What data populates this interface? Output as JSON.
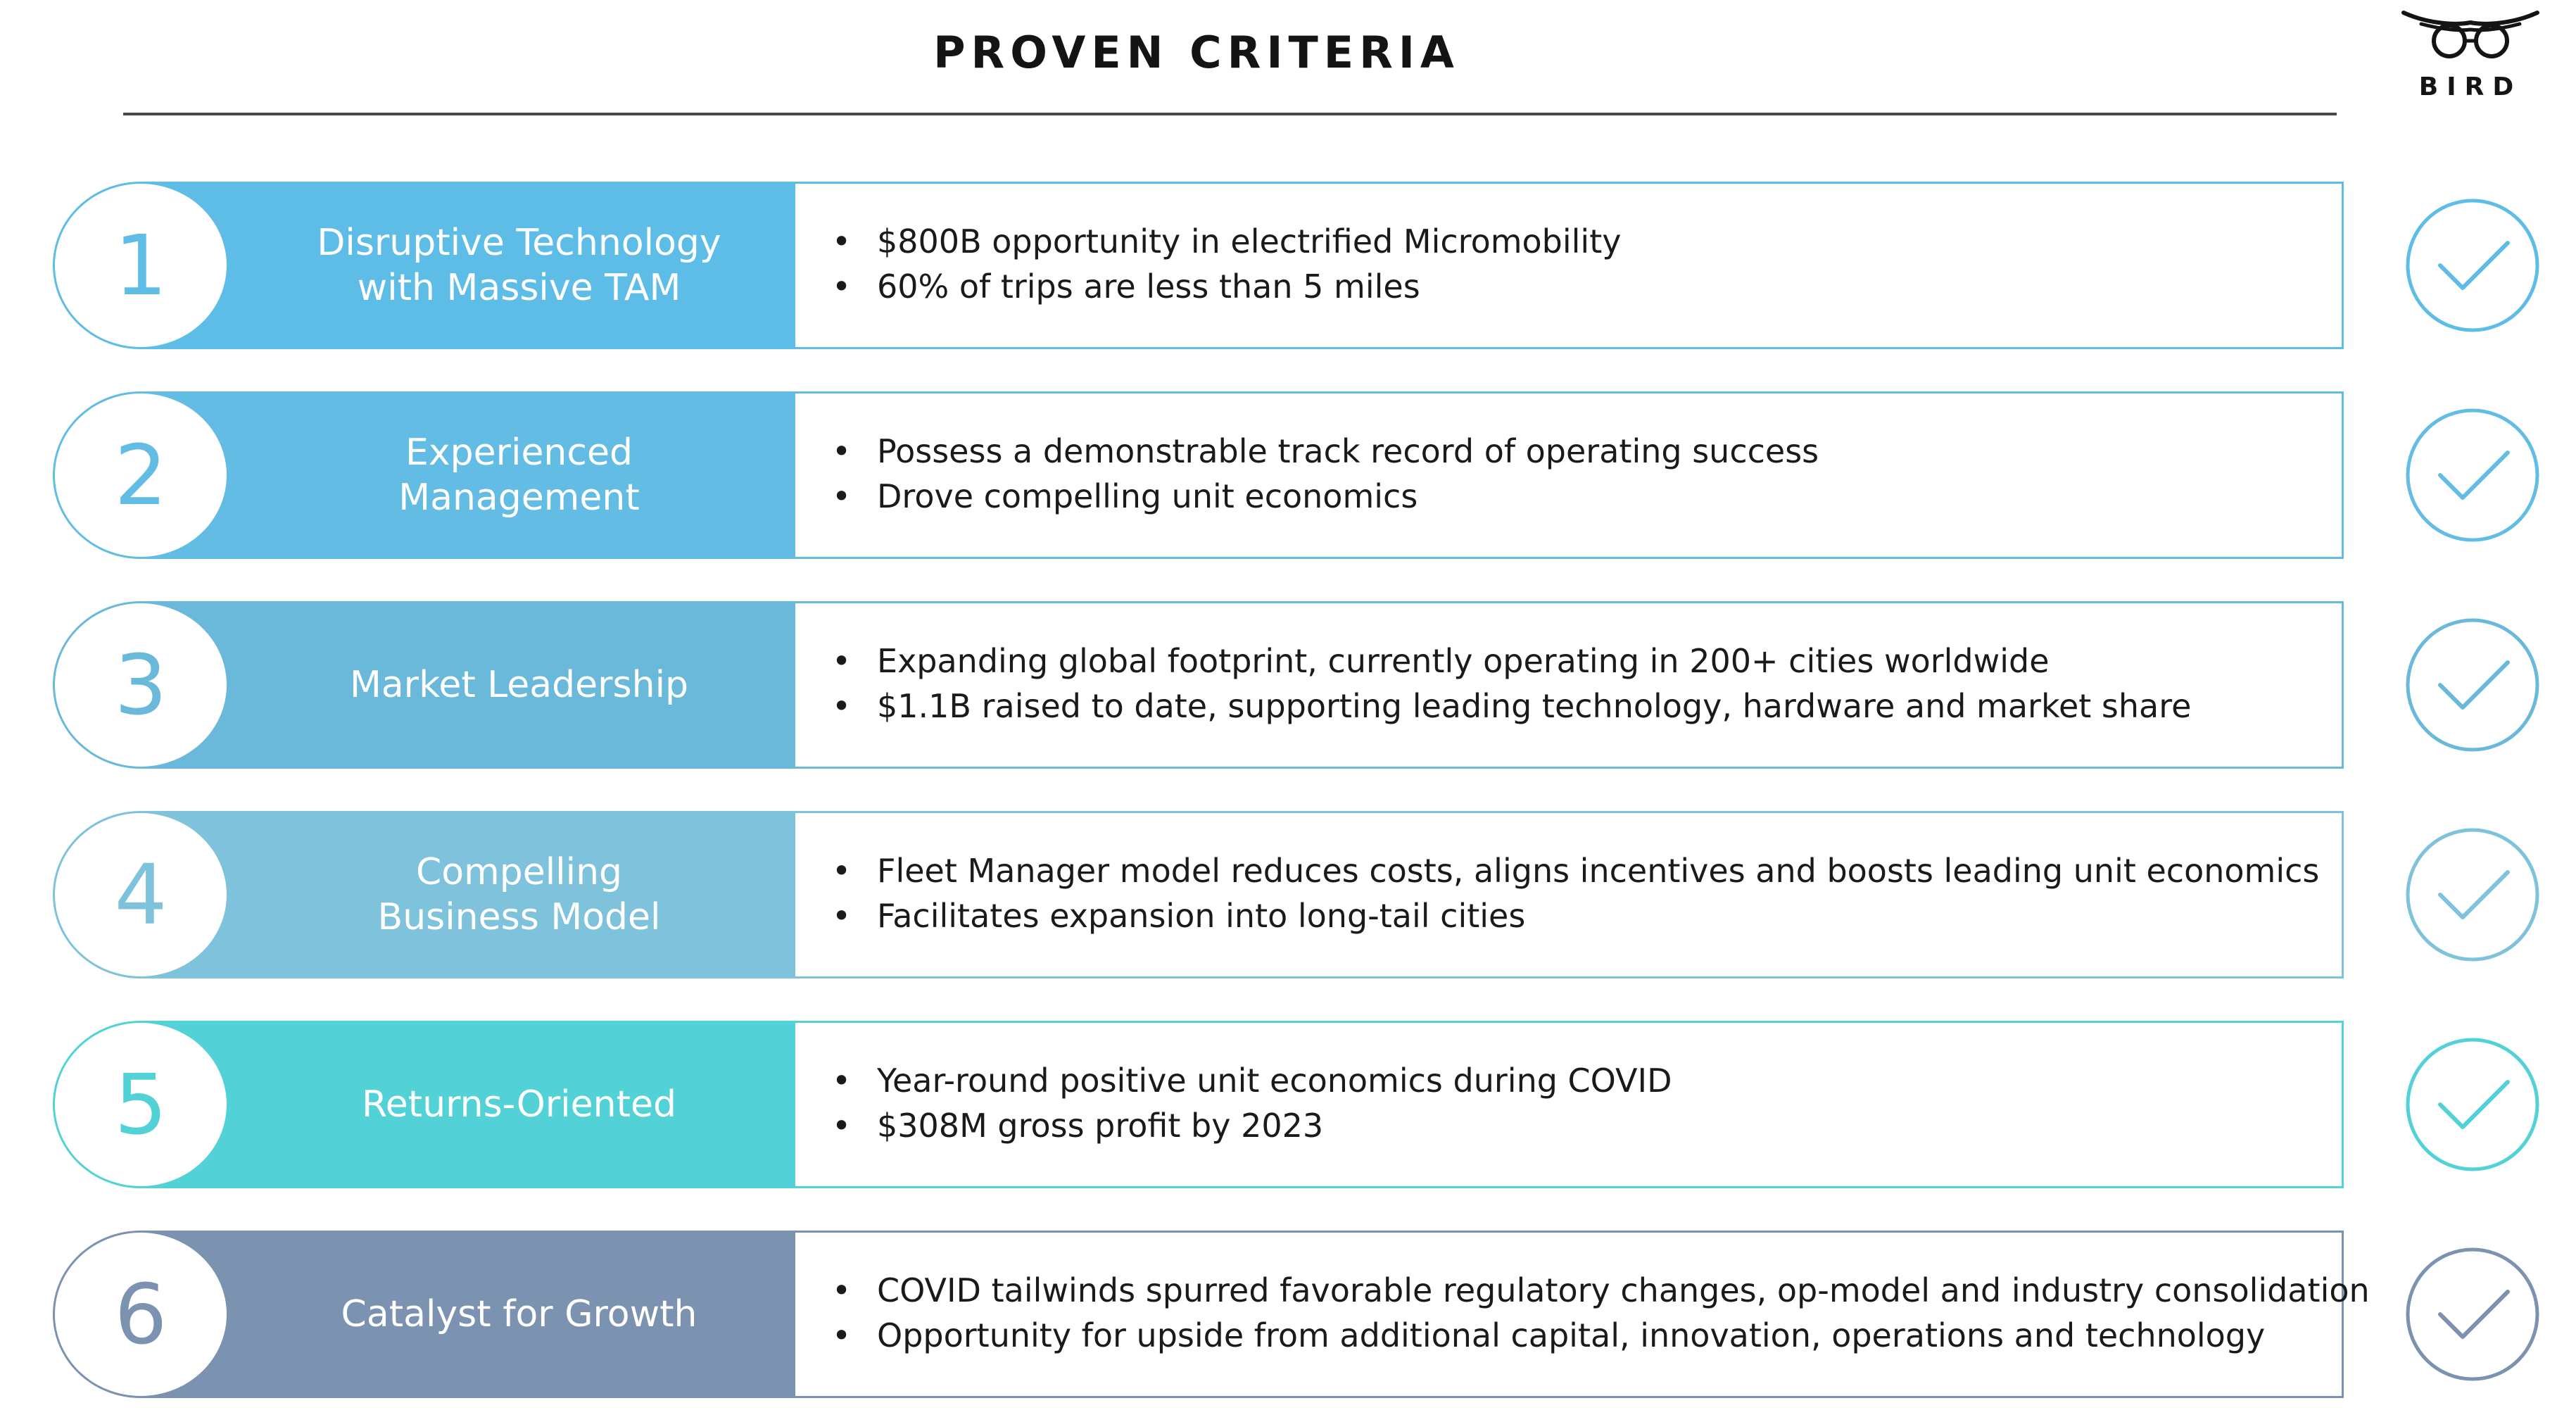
{
  "header": {
    "title": "PROVEN CRITERIA",
    "logo_text": "BIRD",
    "logo_icon": "bird-logo-icon"
  },
  "criteria": [
    {
      "number": "1",
      "label": "Disruptive Technology\nwith Massive TAM",
      "bullets": [
        "$800B opportunity in electrified Micromobility",
        "60% of trips are less than 5 miles"
      ],
      "color": "#5dbde6",
      "status_icon": "check-circle-icon"
    },
    {
      "number": "2",
      "label": "Experienced\nManagement",
      "bullets": [
        "Possess a demonstrable track record of operating success",
        "Drove compelling unit economics"
      ],
      "color": "#62bce3",
      "status_icon": "check-circle-icon"
    },
    {
      "number": "3",
      "label": "Market Leadership",
      "bullets": [
        "Expanding global footprint, currently operating in 200+ cities worldwide",
        "$1.1B raised to date, supporting leading technology, hardware and market share"
      ],
      "color": "#6ab8da",
      "status_icon": "check-circle-icon"
    },
    {
      "number": "4",
      "label": "Compelling\nBusiness Model",
      "bullets": [
        "Fleet Manager model reduces costs, aligns incentives and boosts leading unit economics",
        "Facilitates expansion into long-tail cities"
      ],
      "color": "#7ec2dc",
      "status_icon": "check-circle-icon"
    },
    {
      "number": "5",
      "label": "Returns-Oriented",
      "bullets": [
        "Year-round positive unit economics during COVID",
        "$308M gross profit by 2023"
      ],
      "color": "#52d2d6",
      "status_icon": "check-circle-icon"
    },
    {
      "number": "6",
      "label": "Catalyst for Growth",
      "bullets": [
        "COVID tailwinds spurred favorable regulatory changes, op-model and industry consolidation",
        "Opportunity for upside from additional capital, innovation, operations and technology"
      ],
      "color": "#7b92b0",
      "status_icon": "check-circle-icon"
    }
  ]
}
